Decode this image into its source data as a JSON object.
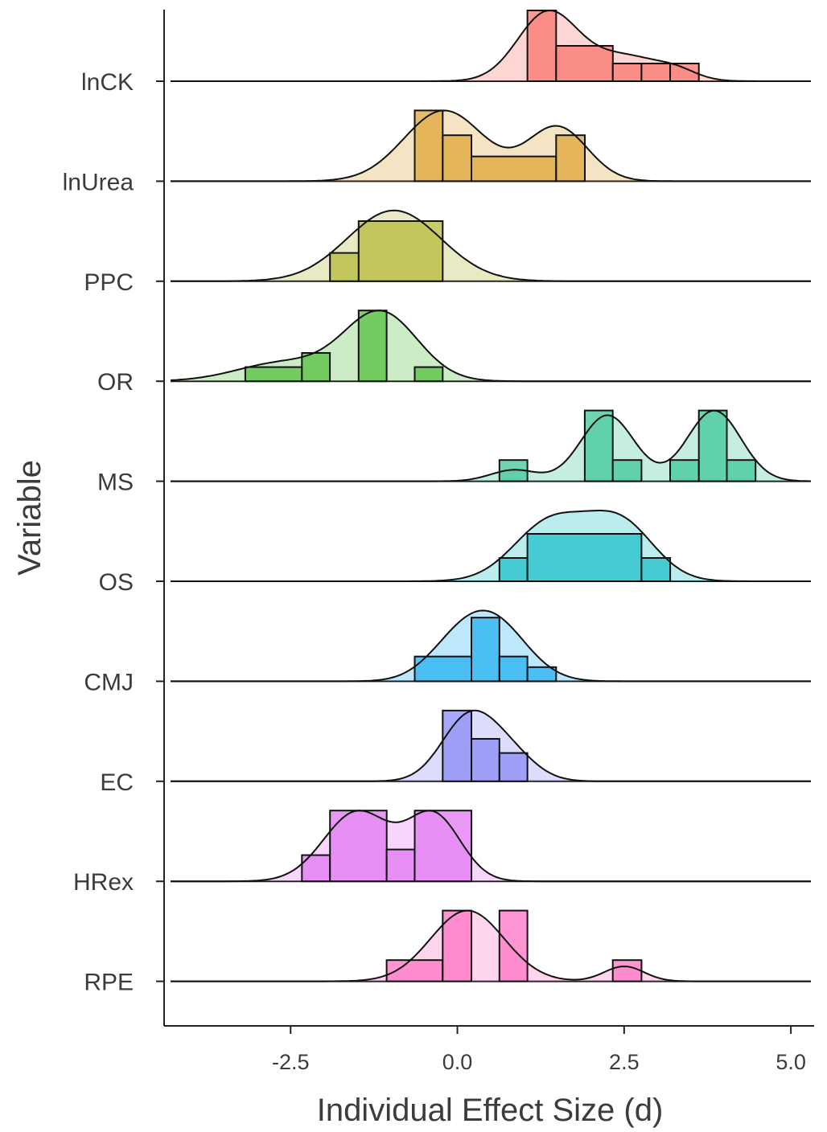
{
  "chart_data": {
    "type": "ridgeline",
    "xlabel": "Individual Effect Size (d)",
    "ylabel": "Variable",
    "xlim": [
      -4.3,
      5.3
    ],
    "xticks": [
      -2.5,
      0.0,
      2.5,
      5.0
    ],
    "xtick_labels": [
      "-2.5",
      "0.0",
      "2.5",
      "5.0"
    ],
    "grid": false,
    "legend": "none",
    "series": [
      {
        "name": "lnCK",
        "color": "#F8766D",
        "hist_edges": [
          1.05,
          1.48,
          2.33,
          2.76,
          3.19,
          3.62
        ],
        "hist_heights": [
          1.0,
          0.5,
          0.25,
          0.25,
          0.25
        ],
        "density_peaks": [
          {
            "mu": 1.35,
            "sigma": 0.45,
            "w": 0.95
          },
          {
            "mu": 2.5,
            "sigma": 0.55,
            "w": 0.35
          },
          {
            "mu": 3.3,
            "sigma": 0.3,
            "w": 0.1
          }
        ]
      },
      {
        "name": "lnUrea",
        "color": "#DDA638",
        "hist_edges": [
          -0.64,
          -0.22,
          0.21,
          1.48,
          1.91
        ],
        "hist_heights": [
          1.0,
          0.65,
          0.35,
          0.65
        ],
        "density_peaks": [
          {
            "mu": -0.2,
            "sigma": 0.6,
            "w": 0.85
          },
          {
            "mu": 1.5,
            "sigma": 0.45,
            "w": 0.65
          }
        ]
      },
      {
        "name": "PPC",
        "color": "#B5B93A",
        "hist_edges": [
          -1.91,
          -1.48,
          -0.22
        ],
        "hist_heights": [
          0.4,
          0.85
        ],
        "density_peaks": [
          {
            "mu": -0.95,
            "sigma": 0.7,
            "w": 1.0
          }
        ]
      },
      {
        "name": "OR",
        "color": "#57C040",
        "hist_edges": [
          -3.61,
          -3.18,
          -2.33,
          -1.91,
          -1.48,
          -1.06,
          -0.64,
          -0.22
        ],
        "hist_heights": [
          0.0,
          0.2,
          0.4,
          0.0,
          1.0,
          0.0,
          0.2
        ],
        "density_peaks": [
          {
            "mu": -1.15,
            "sigma": 0.55,
            "w": 0.55
          },
          {
            "mu": -2.6,
            "sigma": 0.7,
            "w": 0.15
          }
        ]
      },
      {
        "name": "MS",
        "color": "#3FC59A",
        "hist_edges": [
          0.63,
          1.05,
          1.91,
          2.33,
          2.76,
          3.19,
          3.62,
          4.04,
          4.47
        ],
        "hist_heights": [
          0.3,
          0.0,
          1.0,
          0.3,
          0.0,
          0.3,
          1.0,
          0.3
        ],
        "density_peaks": [
          {
            "mu": 2.25,
            "sigma": 0.4,
            "w": 0.7
          },
          {
            "mu": 3.85,
            "sigma": 0.4,
            "w": 0.75
          },
          {
            "mu": 0.85,
            "sigma": 0.35,
            "w": 0.12
          }
        ]
      },
      {
        "name": "OS",
        "color": "#1FC0C8",
        "hist_edges": [
          0.63,
          1.05,
          2.76,
          3.19
        ],
        "hist_heights": [
          0.33,
          0.67,
          0.33
        ],
        "density_peaks": [
          {
            "mu": 1.4,
            "sigma": 0.55,
            "w": 0.75
          },
          {
            "mu": 2.45,
            "sigma": 0.5,
            "w": 0.72
          }
        ]
      },
      {
        "name": "CMJ",
        "color": "#26B2F2",
        "hist_edges": [
          -0.64,
          0.21,
          0.63,
          1.05,
          1.48
        ],
        "hist_heights": [
          0.35,
          0.9,
          0.35,
          0.2
        ],
        "density_peaks": [
          {
            "mu": 0.55,
            "sigma": 0.5,
            "w": 0.75
          },
          {
            "mu": -0.05,
            "sigma": 0.45,
            "w": 0.35
          }
        ]
      },
      {
        "name": "EC",
        "color": "#8B8BF5",
        "hist_edges": [
          -0.22,
          0.21,
          0.63,
          1.05
        ],
        "hist_heights": [
          1.0,
          0.6,
          0.4
        ],
        "density_peaks": [
          {
            "mu": 0.15,
            "sigma": 0.4,
            "w": 0.75
          },
          {
            "mu": 0.75,
            "sigma": 0.4,
            "w": 0.35
          }
        ]
      },
      {
        "name": "HRex",
        "color": "#E277F2",
        "hist_edges": [
          -2.33,
          -1.91,
          -1.06,
          -0.64,
          0.21
        ],
        "hist_heights": [
          0.37,
          1.0,
          0.45,
          1.0
        ],
        "density_peaks": [
          {
            "mu": -1.5,
            "sigma": 0.5,
            "w": 0.75
          },
          {
            "mu": -0.35,
            "sigma": 0.4,
            "w": 0.7
          }
        ]
      },
      {
        "name": "RPE",
        "color": "#FF73C4",
        "hist_edges": [
          -1.06,
          -0.22,
          0.21,
          0.63,
          1.05,
          2.33,
          2.76
        ],
        "hist_heights": [
          0.3,
          1.0,
          0.0,
          1.0,
          0.0,
          0.3
        ],
        "density_peaks": [
          {
            "mu": 0.15,
            "sigma": 0.55,
            "w": 0.85
          },
          {
            "mu": 2.5,
            "sigma": 0.3,
            "w": 0.18
          }
        ]
      }
    ]
  }
}
